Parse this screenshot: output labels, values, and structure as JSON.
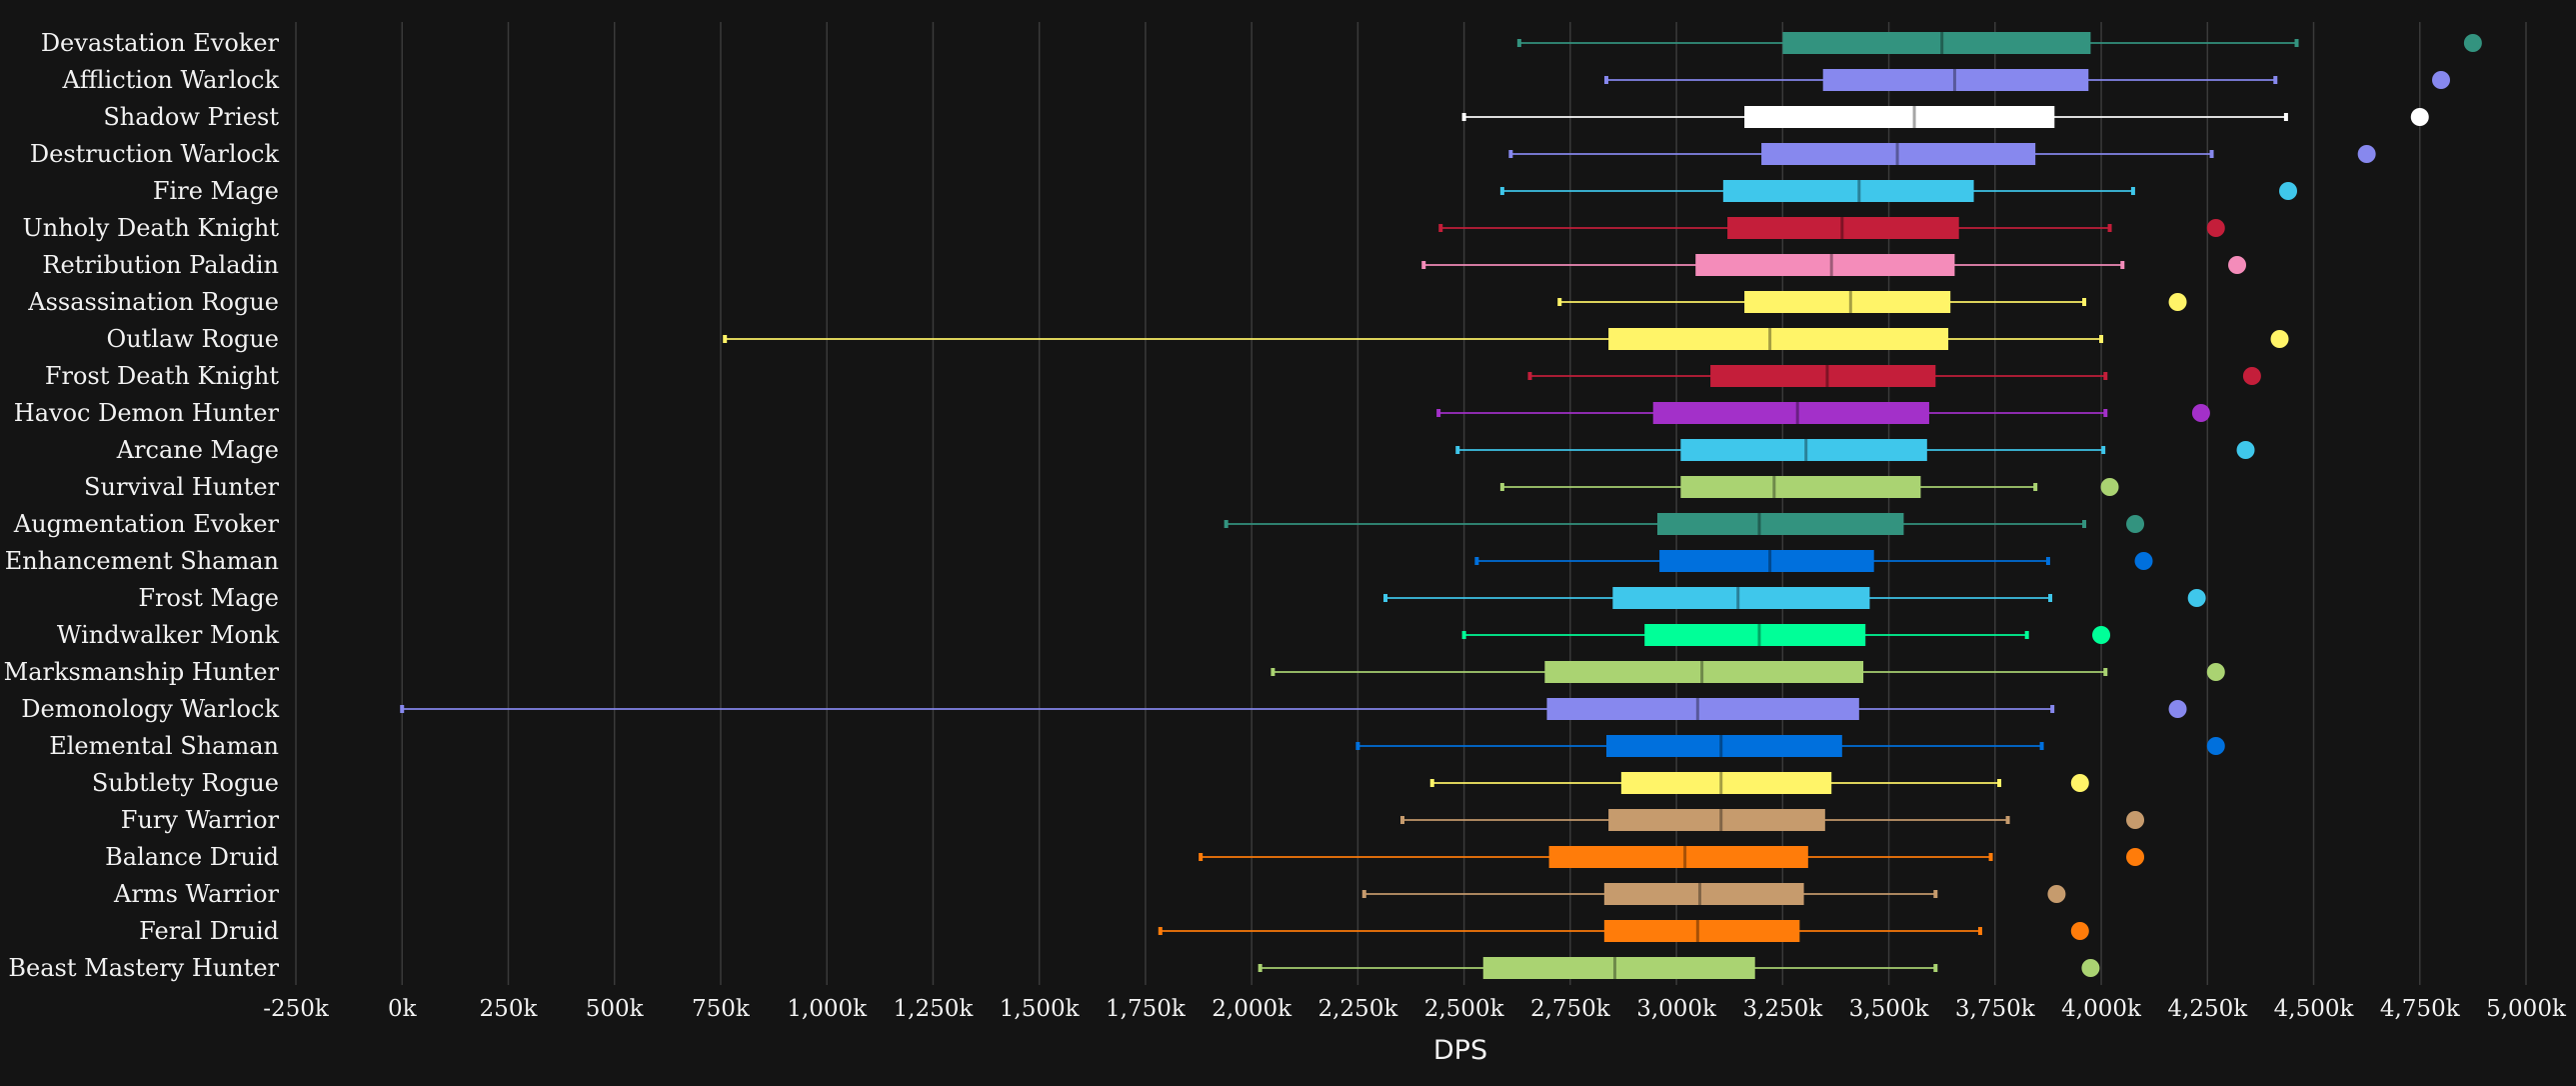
{
  "chart_data": {
    "type": "box",
    "xlabel": "DPS",
    "xlim": [
      -250,
      5000
    ],
    "ticks": [
      -250,
      0,
      250,
      500,
      750,
      1000,
      1250,
      1500,
      1750,
      2000,
      2250,
      2500,
      2750,
      3000,
      3250,
      3500,
      3750,
      4000,
      4250,
      4500,
      4750,
      5000
    ],
    "tick_labels": [
      "-250k",
      "0k",
      "250k",
      "500k",
      "750k",
      "1,000k",
      "1,250k",
      "1,500k",
      "1,750k",
      "2,000k",
      "2,250k",
      "2,500k",
      "2,750k",
      "3,000k",
      "3,250k",
      "3,500k",
      "3,750k",
      "4,000k",
      "4,250k",
      "4,500k",
      "4,750k",
      "5,000k"
    ],
    "grid": true,
    "series": [
      {
        "name": "Devastation Evoker",
        "color": "#33937f",
        "min": 2630,
        "q1": 3250,
        "median": 3625,
        "q3": 3975,
        "max": 4460,
        "outlier": 4875
      },
      {
        "name": "Affliction Warlock",
        "color": "#8788ee",
        "min": 2835,
        "q1": 3345,
        "median": 3655,
        "q3": 3970,
        "max": 4410,
        "outlier": 4800
      },
      {
        "name": "Shadow Priest",
        "color": "#ffffff",
        "min": 2500,
        "q1": 3160,
        "median": 3560,
        "q3": 3890,
        "max": 4435,
        "outlier": 4750
      },
      {
        "name": "Destruction Warlock",
        "color": "#8788ee",
        "min": 2610,
        "q1": 3200,
        "median": 3520,
        "q3": 3845,
        "max": 4260,
        "outlier": 4625
      },
      {
        "name": "Fire Mage",
        "color": "#3fc7eb",
        "min": 2590,
        "q1": 3110,
        "median": 3430,
        "q3": 3700,
        "max": 4075,
        "outlier": 4440
      },
      {
        "name": "Unholy Death Knight",
        "color": "#c41e3a",
        "min": 2445,
        "q1": 3120,
        "median": 3390,
        "q3": 3665,
        "max": 4020,
        "outlier": 4270
      },
      {
        "name": "Retribution Paladin",
        "color": "#f48cba",
        "min": 2405,
        "q1": 3045,
        "median": 3365,
        "q3": 3655,
        "max": 4050,
        "outlier": 4320
      },
      {
        "name": "Assassination Rogue",
        "color": "#fff468",
        "min": 2725,
        "q1": 3160,
        "median": 3410,
        "q3": 3645,
        "max": 3960,
        "outlier": 4180
      },
      {
        "name": "Outlaw Rogue",
        "color": "#fff468",
        "min": 760,
        "q1": 2840,
        "median": 3220,
        "q3": 3640,
        "max": 4000,
        "outlier": 4420
      },
      {
        "name": "Frost Death Knight",
        "color": "#c41e3a",
        "min": 2655,
        "q1": 3080,
        "median": 3355,
        "q3": 3610,
        "max": 4010,
        "outlier": 4355
      },
      {
        "name": "Havoc Demon Hunter",
        "color": "#a330c9",
        "min": 2440,
        "q1": 2945,
        "median": 3285,
        "q3": 3595,
        "max": 4010,
        "outlier": 4235
      },
      {
        "name": "Arcane Mage",
        "color": "#3fc7eb",
        "min": 2485,
        "q1": 3010,
        "median": 3305,
        "q3": 3590,
        "max": 4005,
        "outlier": 4340
      },
      {
        "name": "Survival Hunter",
        "color": "#aad372",
        "min": 2590,
        "q1": 3010,
        "median": 3230,
        "q3": 3575,
        "max": 3845,
        "outlier": 4020
      },
      {
        "name": "Augmentation Evoker",
        "color": "#33937f",
        "min": 1940,
        "q1": 2955,
        "median": 3195,
        "q3": 3535,
        "max": 3960,
        "outlier": 4080
      },
      {
        "name": "Enhancement Shaman",
        "color": "#0070dd",
        "min": 2530,
        "q1": 2960,
        "median": 3220,
        "q3": 3465,
        "max": 3875,
        "outlier": 4100
      },
      {
        "name": "Frost Mage",
        "color": "#3fc7eb",
        "min": 2315,
        "q1": 2850,
        "median": 3145,
        "q3": 3455,
        "max": 3880,
        "outlier": 4225
      },
      {
        "name": "Windwalker Monk",
        "color": "#00ff98",
        "min": 2500,
        "q1": 2925,
        "median": 3195,
        "q3": 3445,
        "max": 3825,
        "outlier": 4000
      },
      {
        "name": "Marksmanship Hunter",
        "color": "#aad372",
        "min": 2050,
        "q1": 2690,
        "median": 3060,
        "q3": 3440,
        "max": 4010,
        "outlier": 4270
      },
      {
        "name": "Demonology Warlock",
        "color": "#8788ee",
        "min": 0,
        "q1": 2695,
        "median": 3050,
        "q3": 3430,
        "max": 3885,
        "outlier": 4180
      },
      {
        "name": "Elemental Shaman",
        "color": "#0070dd",
        "min": 2250,
        "q1": 2835,
        "median": 3105,
        "q3": 3390,
        "max": 3860,
        "outlier": 4270
      },
      {
        "name": "Subtlety Rogue",
        "color": "#fff468",
        "min": 2425,
        "q1": 2870,
        "median": 3105,
        "q3": 3365,
        "max": 3760,
        "outlier": 3950
      },
      {
        "name": "Fury Warrior",
        "color": "#c69b6d",
        "min": 2355,
        "q1": 2840,
        "median": 3105,
        "q3": 3350,
        "max": 3780,
        "outlier": 4080
      },
      {
        "name": "Balance Druid",
        "color": "#ff7c0a",
        "min": 1880,
        "q1": 2700,
        "median": 3020,
        "q3": 3310,
        "max": 3740,
        "outlier": 4080
      },
      {
        "name": "Arms Warrior",
        "color": "#c69b6d",
        "min": 2265,
        "q1": 2830,
        "median": 3055,
        "q3": 3300,
        "max": 3610,
        "outlier": 3895
      },
      {
        "name": "Feral Druid",
        "color": "#ff7c0a",
        "min": 1785,
        "q1": 2830,
        "median": 3050,
        "q3": 3290,
        "max": 3715,
        "outlier": 3950
      },
      {
        "name": "Beast Mastery Hunter",
        "color": "#aad372",
        "min": 2020,
        "q1": 2545,
        "median": 2855,
        "q3": 3185,
        "max": 3610,
        "outlier": 3975
      }
    ]
  }
}
